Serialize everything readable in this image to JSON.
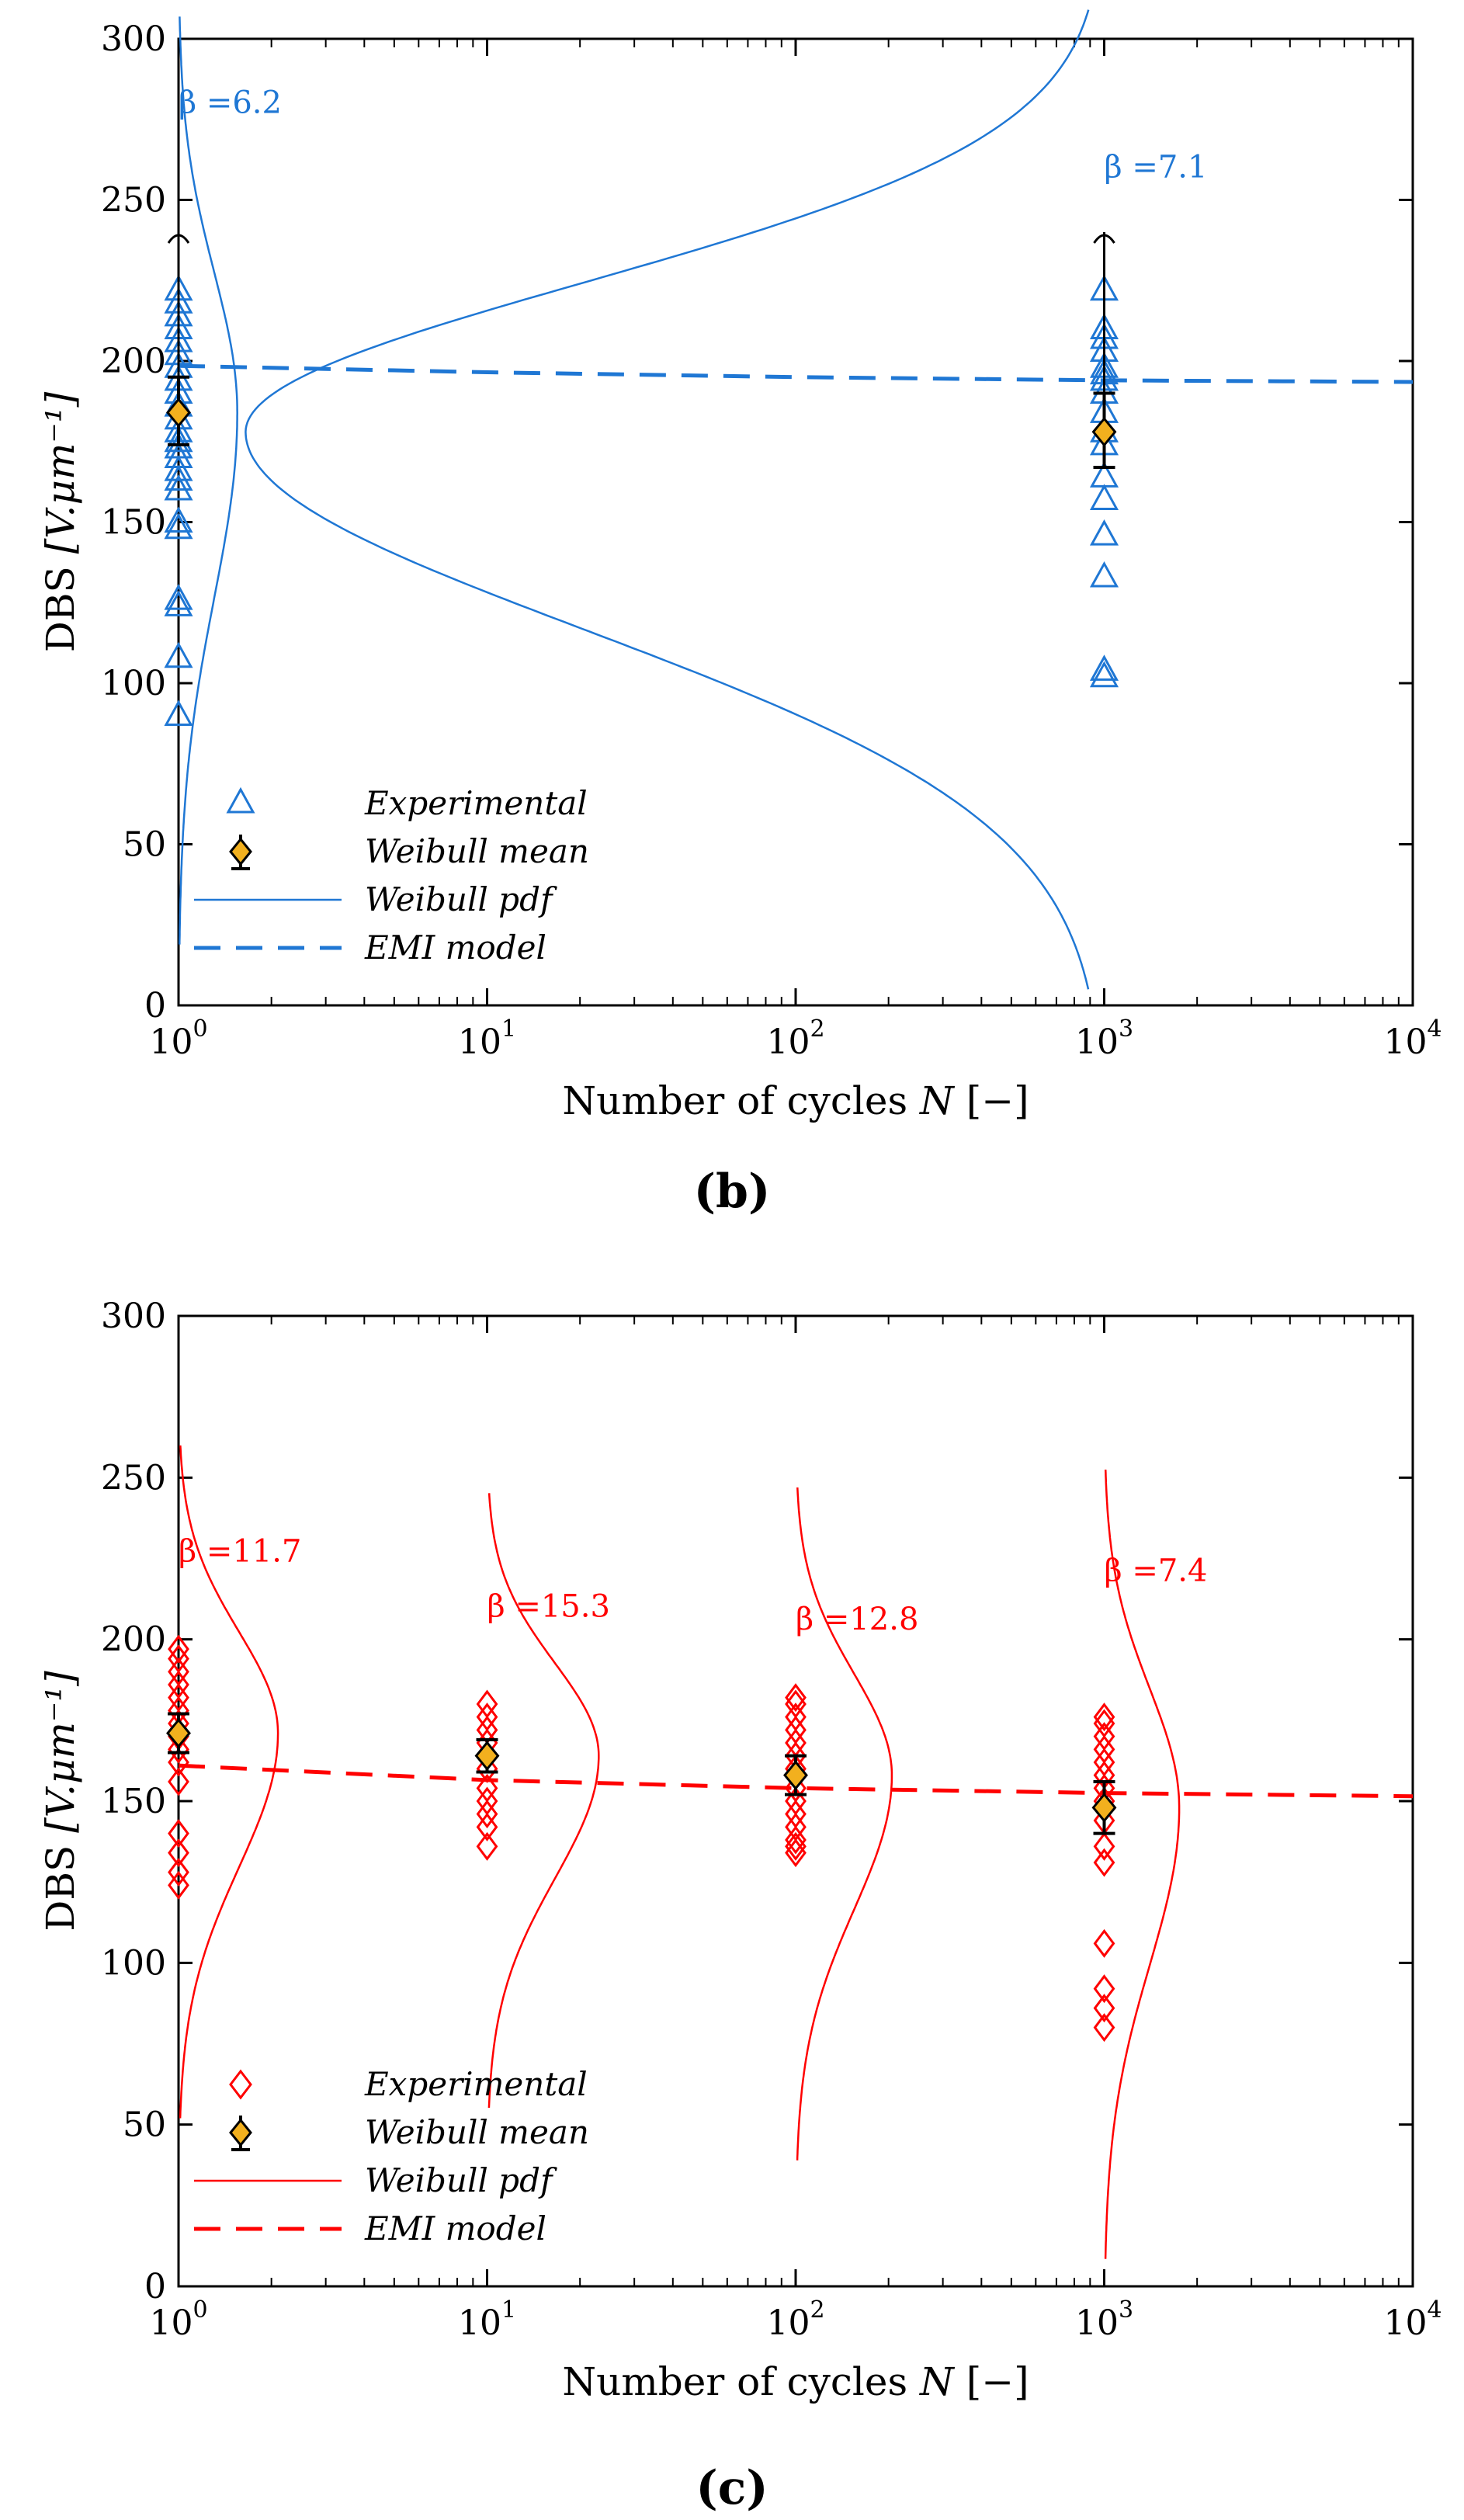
{
  "chart_data": [
    {
      "panel": "(b)",
      "type": "scatter",
      "color": "#1f77d4",
      "xlabel": "Number of cycles",
      "xlabel_symbol": "N",
      "xlabel_unit": "[−]",
      "ylabel": "DBS",
      "ylabel_unit": "[V.μm⁻¹]",
      "xscale": "log",
      "xlim": [
        1,
        10000
      ],
      "ylim": [
        0,
        300
      ],
      "xticks": [
        {
          "base": "10",
          "exp": "0"
        },
        {
          "base": "10",
          "exp": "1"
        },
        {
          "base": "10",
          "exp": "2"
        },
        {
          "base": "10",
          "exp": "3"
        },
        {
          "base": "10",
          "exp": "4"
        }
      ],
      "yticks": [
        "0",
        "50",
        "100",
        "150",
        "200",
        "250",
        "300"
      ],
      "legend": [
        "Experimental",
        "Weibull mean",
        "Weibull pdf",
        "EMI model"
      ],
      "legend_position": "bottom-left",
      "groups": [
        {
          "N": 1,
          "beta_label": "β =6.2",
          "beta_anchor": [
            1.0,
            277
          ],
          "experimental": [
            90,
            108,
            124,
            126,
            148,
            150,
            160,
            163,
            166,
            170,
            173,
            175,
            178,
            182,
            186,
            190,
            194,
            198,
            202,
            206,
            210,
            214,
            218,
            222
          ],
          "mean": 184,
          "err_low": 174,
          "err_high": 195,
          "top_error": 240,
          "pdf_peak": 1.55
        },
        {
          "N": 1000,
          "beta_label": "β =7.1",
          "beta_anchor": [
            1000,
            257
          ],
          "experimental": [
            102,
            104,
            133,
            146,
            157,
            164,
            174,
            178,
            184,
            190,
            194,
            196,
            198,
            203,
            207,
            210,
            222
          ],
          "mean": 178,
          "err_low": 167,
          "err_high": 190,
          "top_error": 240,
          "pdf_peak": 1.65
        }
      ],
      "emi_model": {
        "x": [
          1,
          10,
          100,
          1000,
          10000
        ],
        "y": [
          198.5,
          196.5,
          195,
          194,
          193.5
        ]
      }
    },
    {
      "panel": "(c)",
      "type": "scatter",
      "color": "#ff0000",
      "xlabel": "Number of cycles",
      "xlabel_symbol": "N",
      "xlabel_unit": "[−]",
      "ylabel": "DBS",
      "ylabel_unit": "[V.μm⁻¹]",
      "xscale": "log",
      "xlim": [
        1,
        10000
      ],
      "ylim": [
        0,
        300
      ],
      "xticks": [
        {
          "base": "10",
          "exp": "0"
        },
        {
          "base": "10",
          "exp": "1"
        },
        {
          "base": "10",
          "exp": "2"
        },
        {
          "base": "10",
          "exp": "3"
        },
        {
          "base": "10",
          "exp": "4"
        }
      ],
      "yticks": [
        "0",
        "50",
        "100",
        "150",
        "200",
        "250",
        "300"
      ],
      "legend": [
        "Experimental",
        "Weibull mean",
        "Weibull pdf",
        "EMI model"
      ],
      "legend_position": "bottom-left",
      "groups": [
        {
          "N": 1,
          "beta_label": "β =11.7",
          "beta_anchor": [
            1.0,
            224
          ],
          "experimental": [
            124,
            128,
            134,
            140,
            156,
            162,
            166,
            170,
            174,
            178,
            182,
            186,
            190,
            194,
            197
          ],
          "mean": 171,
          "err_low": 165,
          "err_high": 177,
          "pdf_peak": 2.1
        },
        {
          "N": 10,
          "beta_label": "β =15.3",
          "beta_anchor": [
            10,
            207
          ],
          "experimental": [
            136,
            142,
            146,
            150,
            154,
            160,
            164,
            168,
            172,
            176,
            180
          ],
          "mean": 164,
          "err_low": 159,
          "err_high": 169,
          "pdf_peak": 23
        },
        {
          "N": 100,
          "beta_label": "β =12.8",
          "beta_anchor": [
            100,
            203
          ],
          "experimental": [
            134,
            136,
            138,
            142,
            146,
            150,
            154,
            160,
            164,
            168,
            172,
            176,
            180,
            182
          ],
          "mean": 158,
          "err_low": 152,
          "err_high": 164,
          "pdf_peak": 205
        },
        {
          "N": 1000,
          "beta_label": "β =7.4",
          "beta_anchor": [
            1000,
            218
          ],
          "experimental": [
            80,
            86,
            92,
            106,
            131,
            136,
            144,
            150,
            154,
            158,
            162,
            166,
            170,
            174,
            176
          ],
          "mean": 148,
          "err_low": 140,
          "err_high": 156,
          "pdf_peak": 1750
        }
      ],
      "emi_model": {
        "x": [
          1,
          10,
          100,
          1000,
          10000
        ],
        "y": [
          161,
          156.5,
          154,
          152.5,
          151.5
        ]
      }
    }
  ],
  "panel_labels": [
    "(b)",
    "(c)"
  ]
}
